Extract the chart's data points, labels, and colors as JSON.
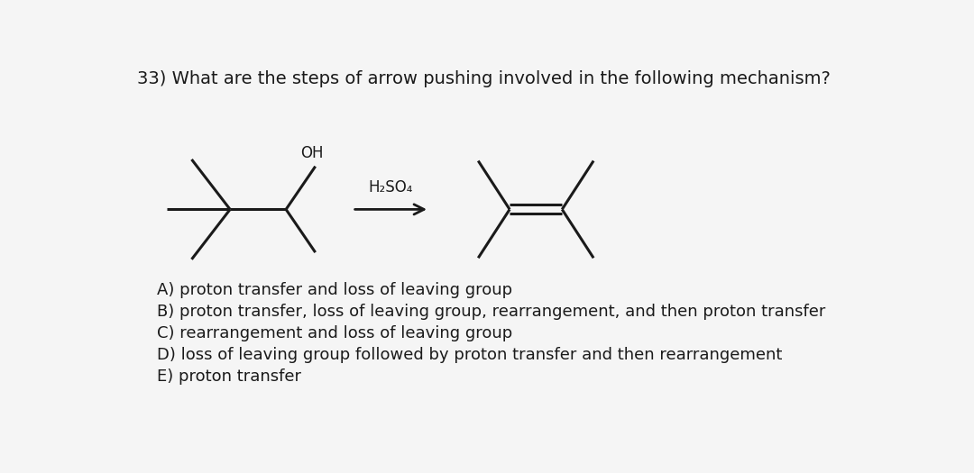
{
  "question": "33) What are the steps of arrow pushing involved in the following mechanism?",
  "reagent_label": "H₂SO₄",
  "oh_label": "OH",
  "choices": [
    "A) proton transfer and loss of leaving group",
    "B) proton transfer, loss of leaving group, rearrangement, and then proton transfer",
    "C) rearrangement and loss of leaving group",
    "D) loss of leaving group followed by proton transfer and then rearrangement",
    "E) proton transfer"
  ],
  "bg_color": "#f5f5f5",
  "text_color": "#1a1a1a",
  "line_color": "#1a1a1a",
  "font_size_question": 14,
  "font_size_choices": 13,
  "font_size_label": 12
}
